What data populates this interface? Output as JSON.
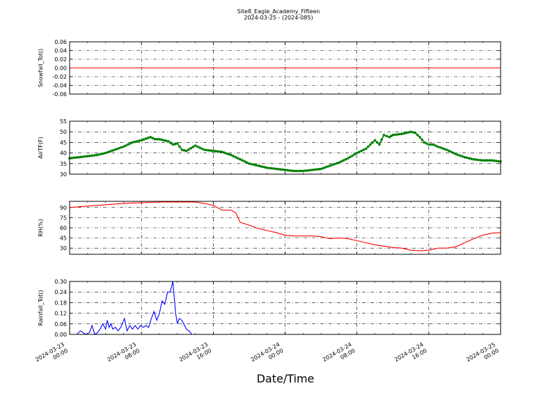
{
  "title": "Site8_Eagle_Academy_Fifteen",
  "subtitle": "2024-03-25 - (2024-085)",
  "xlabel": "Date/Time",
  "x_ticks": [
    {
      "line1": "2024-03-23",
      "line2": "00:00",
      "hour": 0
    },
    {
      "line1": "2024-03-23",
      "line2": "08:00",
      "hour": 8
    },
    {
      "line1": "2024-03-23",
      "line2": "16:00",
      "hour": 16
    },
    {
      "line1": "2024-03-24",
      "line2": "00:00",
      "hour": 24
    },
    {
      "line1": "2024-03-24",
      "line2": "08:00",
      "hour": 32
    },
    {
      "line1": "2024-03-24",
      "line2": "16:00",
      "hour": 40
    },
    {
      "line1": "2024-03-25",
      "line2": "00:00",
      "hour": 48
    }
  ],
  "chart_data": [
    {
      "type": "line",
      "ylabel": "Snowfall_Tot()",
      "ylim": [
        -0.06,
        0.06
      ],
      "yticks": [
        "0.06",
        "0.04",
        "0.02",
        "0.00",
        "-0.02",
        "-0.04",
        "-0.06"
      ],
      "ytick_values": [
        0.06,
        0.04,
        0.02,
        0.0,
        -0.02,
        -0.04,
        -0.06
      ],
      "color": "#ff0000",
      "markers": false,
      "grid": true,
      "x_hours": [
        0,
        48
      ],
      "values": [
        0,
        0
      ]
    },
    {
      "type": "line",
      "ylabel": "AirTF(F)",
      "ylim": [
        30,
        55
      ],
      "yticks": [
        "55",
        "50",
        "45",
        "40",
        "35",
        "30"
      ],
      "ytick_values": [
        55,
        50,
        45,
        40,
        35,
        30
      ],
      "color": "#008000",
      "markers": true,
      "grid": true,
      "x_hours": [
        0,
        1,
        2,
        3,
        4,
        5,
        6,
        7,
        8,
        9,
        9.5,
        10,
        11,
        11.5,
        12,
        12.5,
        13,
        14,
        15,
        16,
        17,
        18,
        19,
        20,
        21,
        22,
        23,
        24,
        25,
        26,
        27,
        28,
        29,
        30,
        31,
        32,
        33,
        34,
        34.5,
        35,
        35.3,
        35.6,
        36,
        37,
        38,
        38.5,
        39,
        39.5,
        40,
        40.5,
        41,
        42,
        43,
        44,
        45,
        46,
        47,
        48
      ],
      "values": [
        37.5,
        38,
        38.5,
        39,
        40,
        41.5,
        43,
        45,
        46,
        47.5,
        46.5,
        46.5,
        45.5,
        44,
        44.5,
        41.5,
        41,
        43.5,
        41.5,
        41,
        40.5,
        39,
        37,
        35,
        34,
        33,
        32.5,
        32,
        31.5,
        31.5,
        32,
        32.5,
        34,
        35.5,
        37.5,
        40,
        42,
        46,
        44,
        48.5,
        48,
        47.5,
        48.5,
        49,
        50,
        49.5,
        47.5,
        45,
        44,
        44,
        43,
        41.5,
        39.5,
        38,
        37,
        36.5,
        36.5,
        36
      ]
    },
    {
      "type": "line",
      "ylabel": "RH(%)",
      "ylim": [
        21,
        99
      ],
      "yticks": [
        "90",
        "75",
        "60",
        "45",
        "30"
      ],
      "ytick_values": [
        90,
        75,
        60,
        45,
        30
      ],
      "color": "#ff0000",
      "markers": false,
      "grid": true,
      "x_hours": [
        0,
        2,
        4,
        6,
        8,
        10,
        12,
        14,
        15,
        16,
        17,
        18,
        18.5,
        19,
        20,
        21,
        22,
        23,
        24,
        25,
        26,
        27,
        28,
        29,
        30,
        31,
        32,
        33,
        34,
        35,
        36,
        37,
        38,
        39,
        40,
        41,
        42,
        43,
        44,
        45,
        46,
        47,
        48
      ],
      "values": [
        90,
        92,
        94,
        96,
        97,
        98,
        98,
        98,
        96,
        93,
        86,
        86,
        82,
        68,
        64,
        59,
        56,
        53,
        49,
        48,
        48,
        48,
        47,
        44,
        45,
        44,
        41,
        38,
        35,
        33,
        31,
        30,
        27,
        26,
        27,
        30,
        30,
        32,
        38,
        44,
        49,
        52,
        53
      ]
    },
    {
      "type": "line",
      "ylabel": "Rainfall_Tot()",
      "ylim": [
        0,
        0.3
      ],
      "yticks": [
        "0.30",
        "0.24",
        "0.18",
        "0.12",
        "0.06",
        "0.00"
      ],
      "ytick_values": [
        0.3,
        0.24,
        0.18,
        0.12,
        0.06,
        0.0
      ],
      "color": "#0000ff",
      "markers": false,
      "grid": true,
      "x_hours": [
        0,
        0.8,
        1.2,
        1.8,
        2.2,
        2.5,
        2.8,
        3.1,
        3.4,
        3.7,
        4.0,
        4.2,
        4.4,
        4.6,
        4.8,
        5.1,
        5.4,
        5.7,
        6.1,
        6.4,
        6.7,
        7.0,
        7.3,
        7.6,
        7.9,
        8.2,
        8.5,
        8.8,
        9.1,
        9.4,
        9.7,
        10.0,
        10.3,
        10.6,
        10.9,
        11.2,
        11.5,
        11.8,
        12.0,
        12.2,
        12.5,
        12.8,
        13.0,
        13.3,
        13.6,
        14.0,
        14.4,
        15.0,
        48
      ],
      "values": [
        0,
        0,
        0.02,
        0,
        0.01,
        0.05,
        0,
        0.01,
        0.03,
        0.06,
        0.03,
        0.08,
        0.04,
        0.06,
        0.03,
        0.04,
        0.02,
        0.04,
        0.09,
        0.02,
        0.05,
        0.03,
        0.05,
        0.03,
        0.05,
        0.04,
        0.05,
        0.04,
        0.09,
        0.13,
        0.08,
        0.12,
        0.19,
        0.17,
        0.24,
        0.24,
        0.3,
        0.12,
        0.06,
        0.09,
        0.08,
        0.05,
        0.03,
        0.02,
        0,
        0,
        0,
        0,
        0
      ]
    }
  ]
}
